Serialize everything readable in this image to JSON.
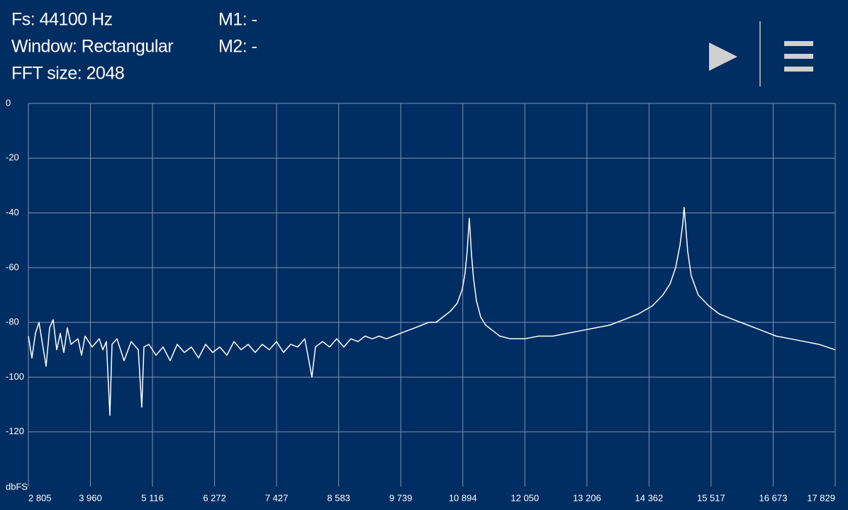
{
  "header": {
    "fs": "Fs: 44100 Hz",
    "window": "Window: Rectangular",
    "fft": "FFT size: 2048",
    "m1": "M1: -",
    "m2": "M2: -"
  },
  "chart_data": {
    "type": "line",
    "y_unit": "dbFS",
    "x": [
      2805,
      2871,
      2937,
      3003,
      3069,
      3135,
      3201,
      3267,
      3333,
      3399,
      3465,
      3531,
      3597,
      3729,
      3795,
      3861,
      3993,
      4125,
      4191,
      4257,
      4323,
      4363,
      4455,
      4587,
      4719,
      4851,
      4917,
      4957,
      5049,
      5181,
      5313,
      5445,
      5577,
      5709,
      5841,
      5973,
      6105,
      6237,
      6369,
      6501,
      6633,
      6765,
      6897,
      7029,
      7161,
      7293,
      7425,
      7557,
      7689,
      7821,
      7953,
      8085,
      8151,
      8283,
      8415,
      8547,
      8679,
      8811,
      8943,
      9075,
      9207,
      9339,
      9471,
      9603,
      9735,
      9867,
      9999,
      10131,
      10263,
      10395,
      10527,
      10659,
      10791,
      10883,
      10936,
      10976,
      11002,
      11015,
      11029,
      11055,
      11095,
      11147,
      11227,
      11319,
      11451,
      11583,
      11781,
      12045,
      12309,
      12573,
      12837,
      13101,
      13365,
      13629,
      13893,
      14157,
      14421,
      14619,
      14751,
      14857,
      14936,
      14989,
      15015,
      15041,
      15081,
      15147,
      15279,
      15477,
      15675,
      15939,
      16203,
      16467,
      16731,
      16995,
      17259,
      17523,
      17829
    ],
    "series": [
      {
        "color": "#ffffff",
        "values": [
          -85,
          -93,
          -84,
          -80,
          -88,
          -96,
          -82,
          -79,
          -90,
          -84,
          -91,
          -82,
          -88,
          -86,
          -92,
          -85,
          -89,
          -86,
          -90,
          -87,
          -114,
          -88,
          -86,
          -94,
          -87,
          -90,
          -111,
          -89,
          -88,
          -92,
          -89,
          -94,
          -88,
          -91,
          -89,
          -93,
          -88,
          -91,
          -89,
          -92,
          -87,
          -90,
          -88,
          -91,
          -88,
          -90,
          -87,
          -91,
          -88,
          -89,
          -86,
          -100,
          -89,
          -87,
          -89,
          -86,
          -89,
          -86,
          -87,
          -85,
          -86,
          -85,
          -86,
          -85,
          -84,
          -83,
          -82,
          -81,
          -80,
          -80,
          -78,
          -76,
          -73,
          -68,
          -62,
          -54,
          -46,
          -42,
          -46,
          -55,
          -64,
          -72,
          -78,
          -81,
          -83,
          -85,
          -86,
          -86,
          -85,
          -85,
          -84,
          -83,
          -82,
          -81,
          -79,
          -77,
          -74,
          -70,
          -66,
          -60,
          -52,
          -44,
          -38,
          -44,
          -54,
          -63,
          -70,
          -74,
          -77,
          -79,
          -81,
          -83,
          -85,
          -86,
          -87,
          -88,
          -90
        ]
      }
    ],
    "xlim": [
      2805,
      17829
    ],
    "ylim": [
      -140,
      0
    ],
    "xticks": [
      {
        "value": 2805,
        "label": "2 805"
      },
      {
        "value": 3960,
        "label": "3 960"
      },
      {
        "value": 5116,
        "label": "5 116"
      },
      {
        "value": 6272,
        "label": "6 272"
      },
      {
        "value": 7427,
        "label": "7 427"
      },
      {
        "value": 8583,
        "label": "8 583"
      },
      {
        "value": 9739,
        "label": "9 739"
      },
      {
        "value": 10894,
        "label": "10 894"
      },
      {
        "value": 12050,
        "label": "12 050"
      },
      {
        "value": 13206,
        "label": "13 206"
      },
      {
        "value": 14362,
        "label": "14 362"
      },
      {
        "value": 15517,
        "label": "15 517"
      },
      {
        "value": 16673,
        "label": "16 673"
      },
      {
        "value": 17829,
        "label": "17 829"
      }
    ],
    "yticks": [
      0,
      -20,
      -40,
      -60,
      -80,
      -100,
      -120
    ],
    "grid": true
  }
}
